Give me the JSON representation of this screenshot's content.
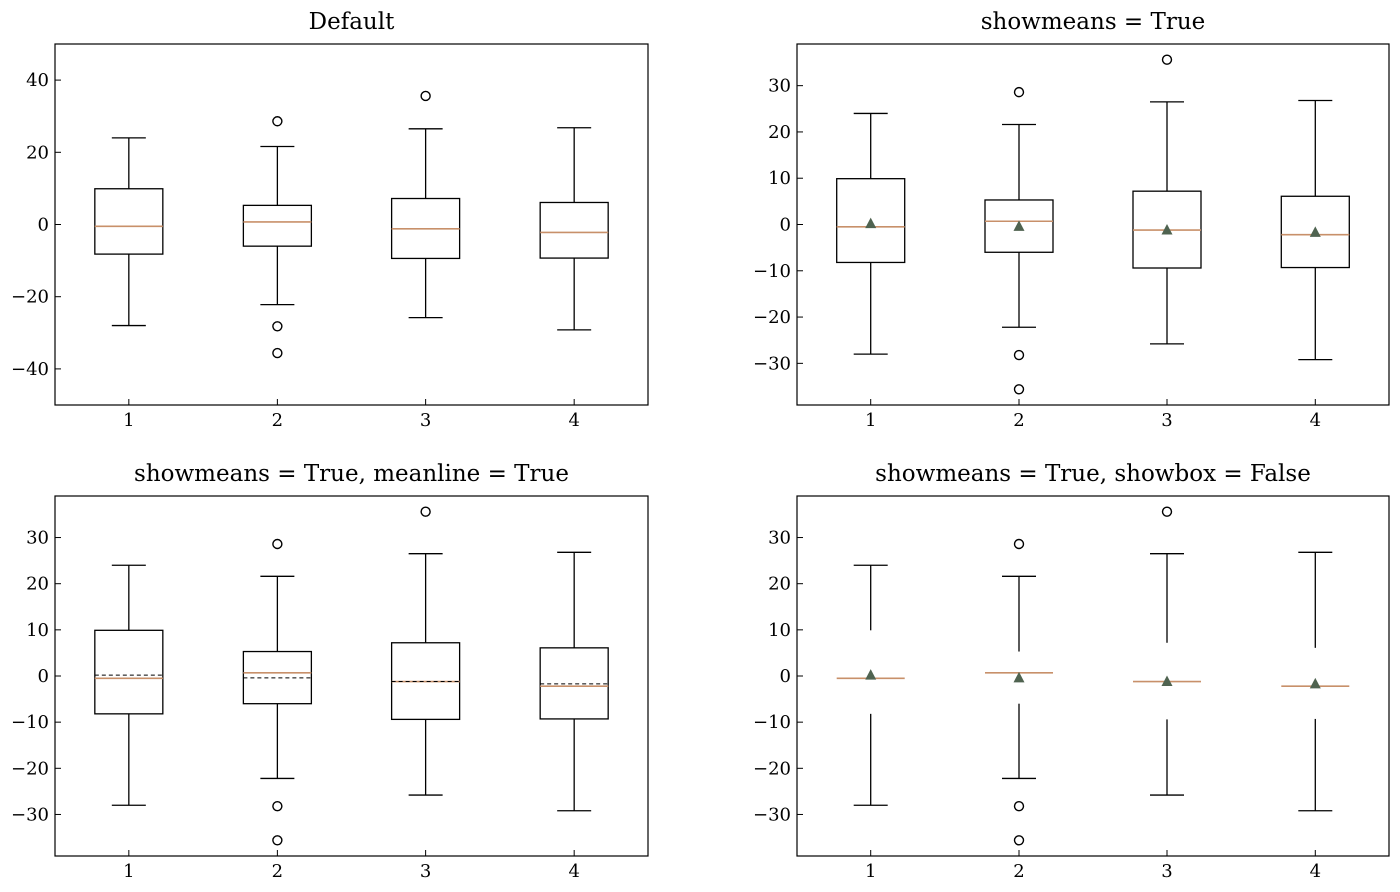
{
  "colors": {
    "box": "#000000",
    "median": "#c8906a",
    "mean_marker": "#4f6350",
    "mean_line": "#000000",
    "flier_edge": "#000000"
  },
  "chart_data": [
    {
      "type": "box",
      "title": "Default",
      "show_means": false,
      "mean_line": false,
      "show_box": true,
      "categories": [
        "1",
        "2",
        "3",
        "4"
      ],
      "ylim": [
        -50,
        50
      ],
      "y_ticks": [
        -40,
        -20,
        0,
        20,
        40
      ],
      "y_tick_labels": [
        "−40",
        "−20",
        "0",
        "20",
        "40"
      ],
      "boxes": [
        {
          "whislo": -28,
          "q1": -8.2,
          "med": -0.5,
          "q3": 9.9,
          "whishi": 24,
          "mean": 0.2,
          "fliers": []
        },
        {
          "whislo": -22.2,
          "q1": -6,
          "med": 0.7,
          "q3": 5.3,
          "whishi": 21.6,
          "mean": -0.4,
          "fliers": [
            28.6,
            -28.2,
            -35.6
          ]
        },
        {
          "whislo": -25.8,
          "q1": -9.4,
          "med": -1.2,
          "q3": 7.2,
          "whishi": 26.5,
          "mean": -1.2,
          "fliers": [
            35.6
          ]
        },
        {
          "whislo": -29.2,
          "q1": -9.3,
          "med": -2.2,
          "q3": 6.1,
          "whishi": 26.8,
          "mean": -1.7,
          "fliers": []
        }
      ]
    },
    {
      "type": "box",
      "title": "showmeans = True",
      "show_means": true,
      "mean_line": false,
      "show_box": true,
      "categories": [
        "1",
        "2",
        "3",
        "4"
      ],
      "ylim": [
        -39,
        39
      ],
      "y_ticks": [
        -30,
        -20,
        -10,
        0,
        10,
        20,
        30
      ],
      "y_tick_labels": [
        "−30",
        "−20",
        "−10",
        "0",
        "10",
        "20",
        "30"
      ],
      "boxes": [
        {
          "whislo": -28,
          "q1": -8.2,
          "med": -0.5,
          "q3": 9.9,
          "whishi": 24,
          "mean": 0.2,
          "fliers": []
        },
        {
          "whislo": -22.2,
          "q1": -6,
          "med": 0.7,
          "q3": 5.3,
          "whishi": 21.6,
          "mean": -0.4,
          "fliers": [
            28.6,
            -28.2,
            -35.6
          ]
        },
        {
          "whislo": -25.8,
          "q1": -9.4,
          "med": -1.2,
          "q3": 7.2,
          "whishi": 26.5,
          "mean": -1.2,
          "fliers": [
            35.6
          ]
        },
        {
          "whislo": -29.2,
          "q1": -9.3,
          "med": -2.2,
          "q3": 6.1,
          "whishi": 26.8,
          "mean": -1.7,
          "fliers": []
        }
      ]
    },
    {
      "type": "box",
      "title": "showmeans = True, meanline = True",
      "show_means": true,
      "mean_line": true,
      "show_box": true,
      "categories": [
        "1",
        "2",
        "3",
        "4"
      ],
      "ylim": [
        -39,
        39
      ],
      "y_ticks": [
        -30,
        -20,
        -10,
        0,
        10,
        20,
        30
      ],
      "y_tick_labels": [
        "−30",
        "−20",
        "−10",
        "0",
        "10",
        "20",
        "30"
      ],
      "boxes": [
        {
          "whislo": -28,
          "q1": -8.2,
          "med": -0.5,
          "q3": 9.9,
          "whishi": 24,
          "mean": 0.2,
          "fliers": []
        },
        {
          "whislo": -22.2,
          "q1": -6,
          "med": 0.7,
          "q3": 5.3,
          "whishi": 21.6,
          "mean": -0.4,
          "fliers": [
            28.6,
            -28.2,
            -35.6
          ]
        },
        {
          "whislo": -25.8,
          "q1": -9.4,
          "med": -1.2,
          "q3": 7.2,
          "whishi": 26.5,
          "mean": -1.2,
          "fliers": [
            35.6
          ]
        },
        {
          "whislo": -29.2,
          "q1": -9.3,
          "med": -2.2,
          "q3": 6.1,
          "whishi": 26.8,
          "mean": -1.7,
          "fliers": []
        }
      ]
    },
    {
      "type": "box",
      "title": "showmeans = True, showbox = False",
      "show_means": true,
      "mean_line": false,
      "show_box": false,
      "categories": [
        "1",
        "2",
        "3",
        "4"
      ],
      "ylim": [
        -39,
        39
      ],
      "y_ticks": [
        -30,
        -20,
        -10,
        0,
        10,
        20,
        30
      ],
      "y_tick_labels": [
        "−30",
        "−20",
        "−10",
        "0",
        "10",
        "20",
        "30"
      ],
      "boxes": [
        {
          "whislo": -28,
          "q1": -8.2,
          "med": -0.5,
          "q3": 9.9,
          "whishi": 24,
          "mean": 0.2,
          "fliers": []
        },
        {
          "whislo": -22.2,
          "q1": -6,
          "med": 0.7,
          "q3": 5.3,
          "whishi": 21.6,
          "mean": -0.4,
          "fliers": [
            28.6,
            -28.2,
            -35.6
          ]
        },
        {
          "whislo": -25.8,
          "q1": -9.4,
          "med": -1.2,
          "q3": 7.2,
          "whishi": 26.5,
          "mean": -1.2,
          "fliers": [
            35.6
          ]
        },
        {
          "whislo": -29.2,
          "q1": -9.3,
          "med": -2.2,
          "q3": 6.1,
          "whishi": 26.8,
          "mean": -1.7,
          "fliers": []
        }
      ]
    }
  ]
}
